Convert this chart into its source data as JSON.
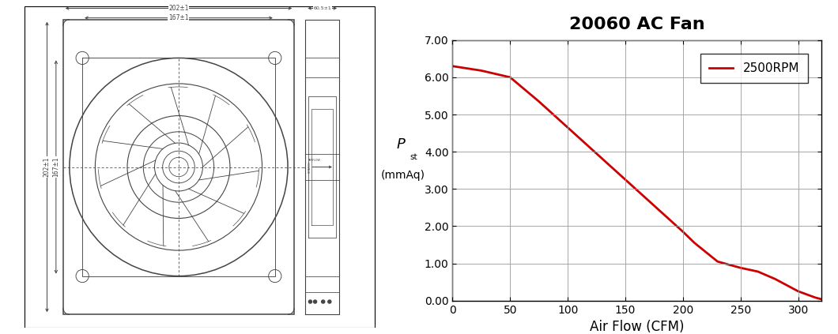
{
  "title": "20060 AC Fan",
  "title_fontsize": 16,
  "xlabel": "Air Flow (CFM)",
  "xmin": 0,
  "xmax": 320,
  "ymin": 0.0,
  "ymax": 7.0,
  "xticks": [
    0,
    50,
    100,
    150,
    200,
    250,
    300
  ],
  "yticks": [
    0.0,
    1.0,
    2.0,
    3.0,
    4.0,
    5.0,
    6.0,
    7.0
  ],
  "ytick_labels": [
    "0.00",
    "1.00",
    "2.00",
    "3.00",
    "4.00",
    "5.00",
    "6.00",
    "7.00"
  ],
  "curve_x": [
    0,
    25,
    50,
    75,
    100,
    125,
    150,
    175,
    200,
    210,
    230,
    250,
    265,
    280,
    300,
    315,
    320
  ],
  "curve_y": [
    6.3,
    6.18,
    6.0,
    5.35,
    4.65,
    3.95,
    3.25,
    2.55,
    1.85,
    1.55,
    1.05,
    0.88,
    0.78,
    0.58,
    0.25,
    0.08,
    0.04
  ],
  "line_color": "#cc0000",
  "line_width": 2.0,
  "legend_label": "2500RPM",
  "legend_fontsize": 11,
  "grid_color": "#999999",
  "background_color": "#ffffff",
  "axis_fontsize": 12,
  "tick_fontsize": 10,
  "fig_width": 10.6,
  "fig_height": 4.23,
  "fan_drawing_color": "#444444",
  "border_color": "#000000"
}
